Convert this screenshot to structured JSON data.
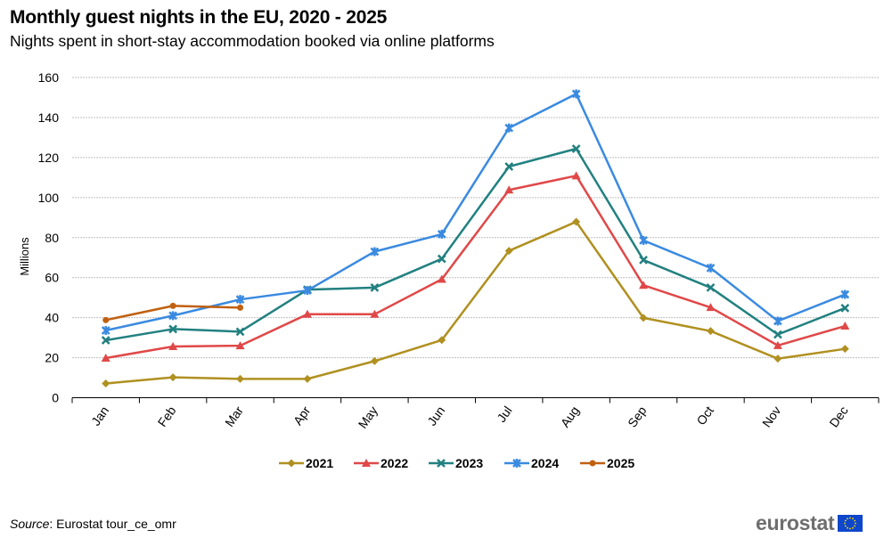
{
  "header": {
    "title": "Monthly guest nights in the EU, 2020 - 2025",
    "subtitle": "Nights spent in short-stay accommodation booked via online platforms"
  },
  "footer": {
    "source_label": "Source",
    "source_text": ": Eurostat tour_ce_omr",
    "logo_text": "eurostat",
    "logo_icon": "eu-flag-icon"
  },
  "colors": {
    "2021": "#b09020",
    "2022": "#e04848",
    "2023": "#228080",
    "2024": "#3a8ae0",
    "2025": "#c06010",
    "grid": "#bfbfbf",
    "axis": "#000000"
  },
  "chart_data": {
    "type": "line",
    "title": "Monthly guest nights in the EU, 2020 - 2025",
    "subtitle": "Nights spent in short-stay accommodation booked via online platforms",
    "xlabel": "",
    "ylabel": "Millions",
    "ylim": [
      0,
      160
    ],
    "yticks": [
      0,
      20,
      40,
      60,
      80,
      100,
      120,
      140,
      160
    ],
    "grid": true,
    "legend_position": "bottom",
    "categories": [
      "Jan",
      "Feb",
      "Mar",
      "Apr",
      "May",
      "Jun",
      "Jul",
      "Aug",
      "Sep",
      "Oct",
      "Nov",
      "Dec"
    ],
    "series": [
      {
        "name": "2021",
        "marker": "diamond",
        "values": [
          7.1,
          10.2,
          9.4,
          9.4,
          18.3,
          28.8,
          73.4,
          87.9,
          39.9,
          33.3,
          19.5,
          24.4
        ]
      },
      {
        "name": "2022",
        "marker": "triangle",
        "values": [
          19.8,
          25.6,
          26.0,
          41.7,
          41.7,
          59.2,
          103.8,
          110.9,
          56.2,
          45.1,
          26.1,
          35.8
        ]
      },
      {
        "name": "2023",
        "marker": "x",
        "values": [
          28.7,
          34.3,
          33.0,
          54.0,
          55.0,
          69.4,
          115.5,
          124.4,
          68.8,
          55.0,
          31.6,
          44.8
        ]
      },
      {
        "name": "2024",
        "marker": "star",
        "values": [
          33.6,
          41.0,
          49.1,
          53.6,
          73.0,
          81.7,
          134.8,
          151.8,
          78.6,
          64.8,
          38.3,
          51.6
        ]
      },
      {
        "name": "2025",
        "marker": "circle",
        "values": [
          38.8,
          45.9,
          45.0,
          null,
          null,
          null,
          null,
          null,
          null,
          null,
          null,
          null
        ]
      }
    ],
    "source": "Source: Eurostat tour_ce_omr"
  }
}
